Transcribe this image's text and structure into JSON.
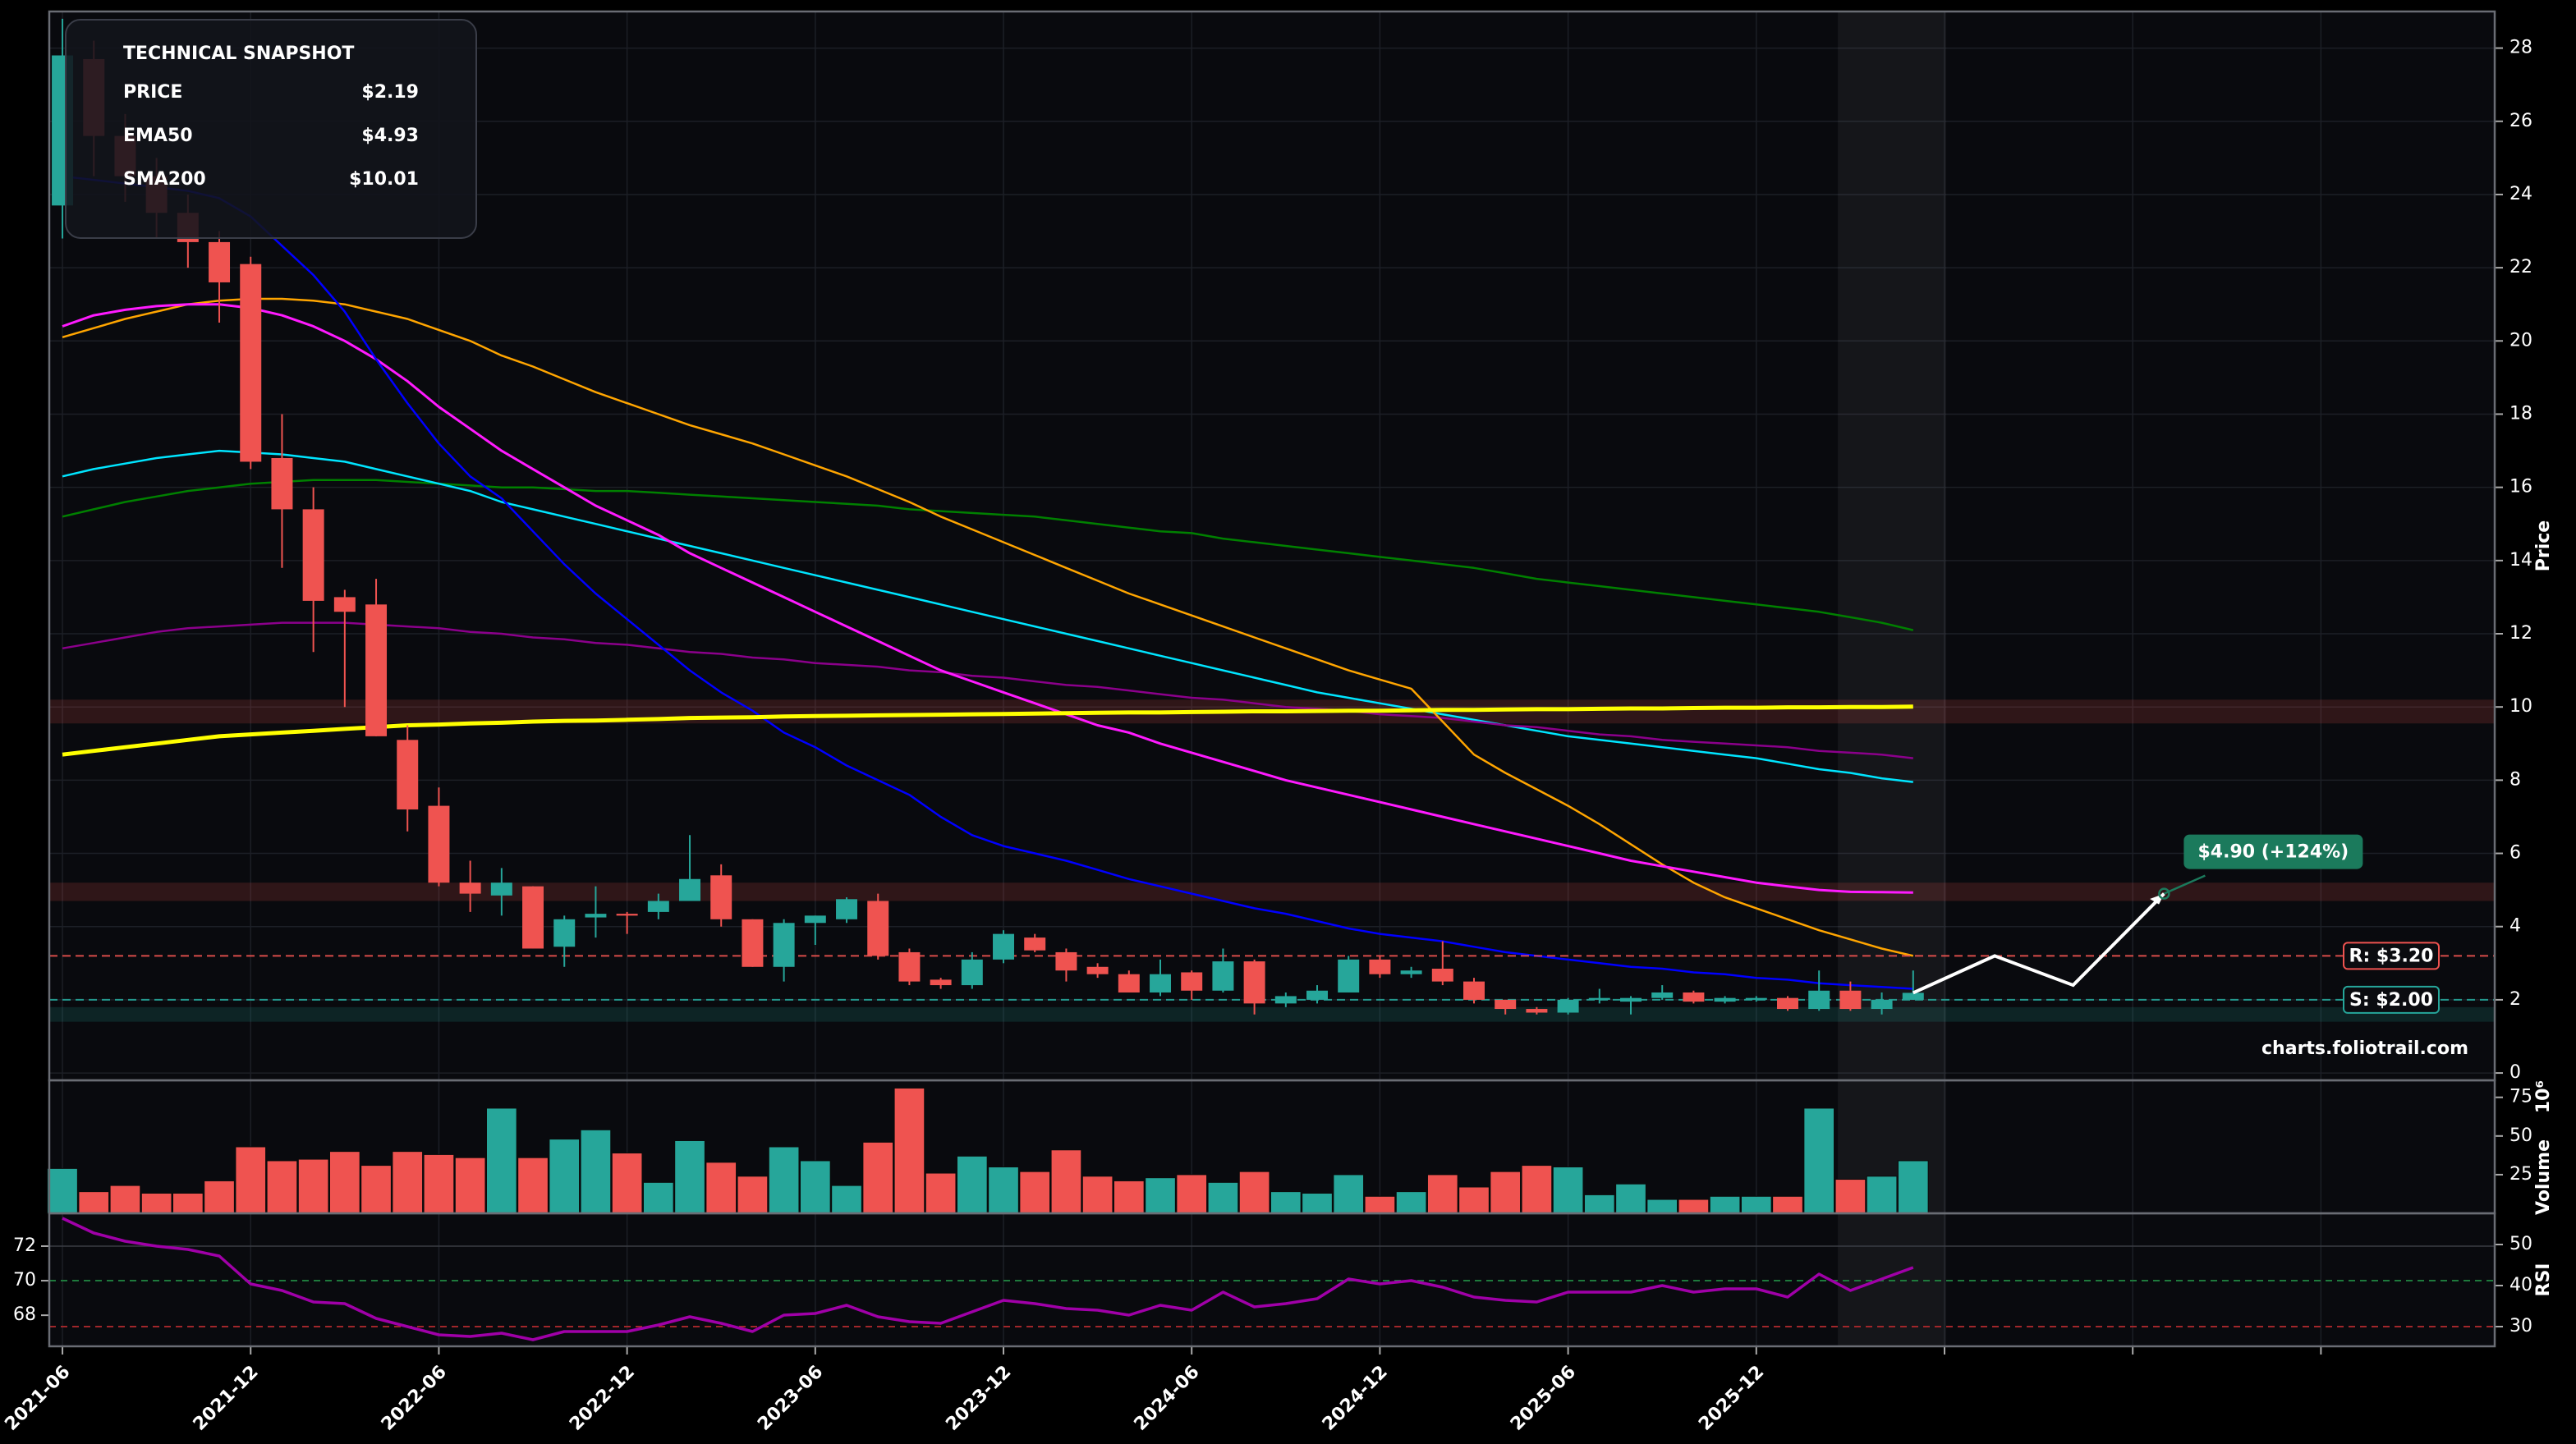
{
  "chart_data": [
    {
      "type": "candlestick",
      "categories": [
        "2021-06",
        "2021-07",
        "2021-08",
        "2021-09",
        "2021-10",
        "2021-11",
        "2021-12",
        "2022-01",
        "2022-02",
        "2022-03",
        "2022-04",
        "2022-05",
        "2022-06",
        "2022-07",
        "2022-08",
        "2022-09",
        "2022-10",
        "2022-11",
        "2022-12",
        "2023-01",
        "2023-02",
        "2023-03",
        "2023-04",
        "2023-05",
        "2023-06",
        "2023-07",
        "2023-08",
        "2023-09",
        "2023-10",
        "2023-11",
        "2023-12",
        "2024-01",
        "2024-02",
        "2024-03",
        "2024-04",
        "2024-05",
        "2024-06",
        "2024-07",
        "2024-08",
        "2024-09",
        "2024-10",
        "2024-11",
        "2024-12",
        "2025-01",
        "2025-02",
        "2025-03",
        "2025-04",
        "2025-05",
        "2025-06",
        "2025-07",
        "2025-08",
        "2025-09",
        "2025-10",
        "2025-11",
        "2025-12",
        "2026-01",
        "2026-02",
        "2026-03",
        "2026-04",
        "2026-05"
      ],
      "open": [
        23.7,
        27.7,
        25.6,
        24.5,
        23.5,
        22.7,
        22.1,
        16.8,
        15.4,
        13.0,
        12.8,
        9.1,
        7.3,
        5.2,
        4.85,
        5.1,
        3.45,
        4.25,
        4.35,
        4.4,
        4.7,
        5.4,
        4.2,
        2.9,
        4.1,
        4.2,
        4.7,
        3.3,
        2.55,
        2.4,
        3.1,
        3.7,
        3.3,
        2.9,
        2.7,
        2.2,
        2.75,
        2.25,
        3.05,
        1.9,
        2.0,
        2.2,
        3.1,
        2.7,
        2.85,
        2.5,
        2.0,
        1.75,
        1.65,
        2.0,
        1.95,
        2.05,
        2.2,
        1.95,
        2.0,
        2.05,
        1.75,
        2.25,
        1.75,
        2.0
      ],
      "high": [
        28.8,
        28.2,
        26.2,
        25.0,
        24.0,
        23.0,
        22.3,
        18.0,
        16.0,
        13.2,
        13.5,
        9.5,
        7.8,
        5.8,
        5.6,
        5.1,
        4.3,
        5.1,
        4.4,
        4.9,
        6.5,
        5.7,
        4.2,
        4.2,
        4.3,
        4.8,
        4.9,
        3.4,
        2.6,
        3.3,
        3.9,
        3.8,
        3.4,
        3.0,
        2.8,
        3.1,
        2.8,
        3.4,
        3.1,
        2.2,
        2.4,
        3.2,
        3.2,
        2.9,
        3.6,
        2.6,
        2.0,
        1.8,
        2.05,
        2.3,
        2.1,
        2.4,
        2.25,
        2.1,
        2.1,
        2.1,
        2.8,
        2.5,
        2.2,
        2.8
      ],
      "low": [
        22.8,
        24.5,
        23.8,
        22.8,
        22.0,
        20.5,
        16.5,
        13.8,
        11.5,
        10.0,
        9.2,
        6.6,
        5.1,
        4.4,
        4.3,
        3.4,
        2.9,
        3.7,
        3.8,
        4.2,
        4.7,
        4.0,
        2.9,
        2.5,
        3.5,
        4.1,
        3.1,
        2.4,
        2.3,
        2.3,
        3.0,
        3.3,
        2.5,
        2.6,
        2.2,
        2.1,
        2.0,
        2.2,
        1.6,
        1.8,
        1.9,
        2.2,
        2.6,
        2.6,
        2.4,
        1.9,
        1.6,
        1.6,
        1.6,
        1.9,
        1.6,
        2.0,
        1.9,
        1.9,
        1.95,
        1.7,
        1.7,
        1.7,
        1.6,
        2.0
      ],
      "close": [
        27.8,
        25.6,
        24.5,
        23.5,
        22.7,
        21.6,
        16.7,
        15.4,
        12.9,
        12.6,
        9.2,
        7.2,
        5.2,
        4.9,
        5.2,
        3.4,
        4.2,
        4.35,
        4.3,
        4.7,
        5.3,
        4.2,
        2.9,
        4.1,
        4.3,
        4.75,
        3.2,
        2.5,
        2.4,
        3.1,
        3.8,
        3.35,
        2.8,
        2.7,
        2.2,
        2.7,
        2.25,
        3.05,
        1.9,
        2.1,
        2.25,
        3.1,
        2.7,
        2.8,
        2.5,
        2.0,
        1.75,
        1.65,
        2.0,
        2.05,
        2.05,
        2.2,
        1.95,
        2.05,
        2.05,
        1.75,
        2.25,
        1.75,
        2.0,
        2.19
      ],
      "up_color": "#26a69a",
      "down_color": "#ef5350",
      "series": [
        {
          "color": "#008000",
          "width": 2.5,
          "values": [
            15.2,
            15.4,
            15.6,
            15.75,
            15.9,
            16.0,
            16.1,
            16.15,
            16.2,
            16.2,
            16.2,
            16.15,
            16.1,
            16.05,
            16.0,
            16.0,
            15.95,
            15.9,
            15.9,
            15.85,
            15.8,
            15.75,
            15.7,
            15.65,
            15.6,
            15.55,
            15.5,
            15.4,
            15.35,
            15.3,
            15.25,
            15.2,
            15.1,
            15.0,
            14.9,
            14.8,
            14.75,
            14.6,
            14.5,
            14.4,
            14.3,
            14.2,
            14.1,
            14.0,
            13.9,
            13.8,
            13.65,
            13.5,
            13.4,
            13.3,
            13.2,
            13.1,
            13.0,
            12.9,
            12.8,
            12.7,
            12.6,
            12.45,
            12.3,
            12.1
          ]
        },
        {
          "color": "#00e5ff",
          "width": 2.5,
          "values": [
            16.3,
            16.5,
            16.65,
            16.8,
            16.9,
            17.0,
            16.95,
            16.9,
            16.8,
            16.7,
            16.5,
            16.3,
            16.1,
            15.9,
            15.6,
            15.4,
            15.2,
            15.0,
            14.8,
            14.6,
            14.4,
            14.2,
            14.0,
            13.8,
            13.6,
            13.4,
            13.2,
            13.0,
            12.8,
            12.6,
            12.4,
            12.2,
            12.0,
            11.8,
            11.6,
            11.4,
            11.2,
            11.0,
            10.8,
            10.6,
            10.4,
            10.25,
            10.1,
            9.95,
            9.8,
            9.65,
            9.5,
            9.35,
            9.2,
            9.1,
            9.0,
            8.9,
            8.8,
            8.7,
            8.6,
            8.45,
            8.3,
            8.2,
            8.05,
            7.95
          ]
        },
        {
          "color": "#8b008b",
          "width": 2.5,
          "values": [
            11.6,
            11.75,
            11.9,
            12.05,
            12.15,
            12.2,
            12.25,
            12.3,
            12.3,
            12.3,
            12.25,
            12.2,
            12.15,
            12.05,
            12.0,
            11.9,
            11.85,
            11.75,
            11.7,
            11.6,
            11.5,
            11.45,
            11.35,
            11.3,
            11.2,
            11.15,
            11.1,
            11.0,
            10.95,
            10.85,
            10.8,
            10.7,
            10.6,
            10.55,
            10.45,
            10.35,
            10.25,
            10.2,
            10.1,
            10.0,
            9.95,
            9.9,
            9.8,
            9.75,
            9.7,
            9.6,
            9.5,
            9.45,
            9.35,
            9.25,
            9.2,
            9.1,
            9.05,
            9.0,
            8.95,
            8.9,
            8.8,
            8.75,
            8.7,
            8.6
          ]
        },
        {
          "color": "#ffa500",
          "width": 2.5,
          "values": [
            20.1,
            20.35,
            20.6,
            20.8,
            21.0,
            21.1,
            21.15,
            21.15,
            21.1,
            21.0,
            20.8,
            20.6,
            20.3,
            20.0,
            19.6,
            19.3,
            18.95,
            18.6,
            18.3,
            18.0,
            17.7,
            17.45,
            17.2,
            16.9,
            16.6,
            16.3,
            15.95,
            15.6,
            15.2,
            14.85,
            14.5,
            14.15,
            13.8,
            13.45,
            13.1,
            12.8,
            12.5,
            12.2,
            11.9,
            11.6,
            11.3,
            11.0,
            10.75,
            10.5,
            9.6,
            8.7,
            8.2,
            7.75,
            7.3,
            6.8,
            6.25,
            5.7,
            5.2,
            4.8,
            4.5,
            4.2,
            3.9,
            3.65,
            3.4,
            3.2
          ]
        },
        {
          "color": "#ff1aff",
          "width": 3,
          "values": [
            20.4,
            20.7,
            20.85,
            20.95,
            21.0,
            21.0,
            20.9,
            20.7,
            20.4,
            20.0,
            19.5,
            18.9,
            18.2,
            17.6,
            17.0,
            16.5,
            16.0,
            15.5,
            15.1,
            14.7,
            14.2,
            13.8,
            13.4,
            13.0,
            12.6,
            12.2,
            11.8,
            11.4,
            11.0,
            10.7,
            10.4,
            10.1,
            9.8,
            9.5,
            9.3,
            9.0,
            8.75,
            8.5,
            8.25,
            8.0,
            7.8,
            7.6,
            7.4,
            7.2,
            7.0,
            6.8,
            6.6,
            6.4,
            6.2,
            6.0,
            5.8,
            5.65,
            5.5,
            5.35,
            5.2,
            5.1,
            5.0,
            4.95,
            4.94,
            4.93
          ]
        },
        {
          "color": "#0000ff",
          "width": 2.5,
          "values": [
            24.5,
            24.4,
            24.3,
            24.2,
            24.1,
            23.9,
            23.4,
            22.6,
            21.8,
            20.8,
            19.5,
            18.3,
            17.2,
            16.3,
            15.7,
            14.8,
            13.9,
            13.1,
            12.4,
            11.7,
            11.0,
            10.4,
            9.9,
            9.3,
            8.9,
            8.4,
            8.0,
            7.6,
            7.0,
            6.5,
            6.2,
            6.0,
            5.8,
            5.55,
            5.3,
            5.1,
            4.9,
            4.7,
            4.5,
            4.35,
            4.15,
            3.95,
            3.8,
            3.7,
            3.6,
            3.45,
            3.3,
            3.2,
            3.1,
            3.0,
            2.9,
            2.85,
            2.75,
            2.7,
            2.6,
            2.55,
            2.45,
            2.4,
            2.35,
            2.3
          ]
        },
        {
          "color": "#ffff00",
          "width": 5,
          "values": [
            8.7,
            8.8,
            8.9,
            9.0,
            9.1,
            9.2,
            9.25,
            9.3,
            9.35,
            9.4,
            9.45,
            9.5,
            9.52,
            9.55,
            9.57,
            9.6,
            9.62,
            9.63,
            9.65,
            9.67,
            9.7,
            9.71,
            9.72,
            9.74,
            9.75,
            9.76,
            9.77,
            9.78,
            9.79,
            9.8,
            9.81,
            9.82,
            9.83,
            9.84,
            9.85,
            9.85,
            9.86,
            9.87,
            9.88,
            9.88,
            9.89,
            9.9,
            9.9,
            9.91,
            9.92,
            9.92,
            9.93,
            9.94,
            9.94,
            9.95,
            9.96,
            9.96,
            9.97,
            9.98,
            9.98,
            9.99,
            9.99,
            10.0,
            10.0,
            10.01
          ]
        }
      ],
      "zones": [
        {
          "range": [
            9.55,
            10.2
          ],
          "color": "#ef5350"
        },
        {
          "range": [
            4.7,
            5.2
          ],
          "color": "#ef5350"
        },
        {
          "range": [
            1.4,
            1.8
          ],
          "color": "#26a69a"
        }
      ],
      "levels": [
        {
          "value": 3.2,
          "label": "R: $3.20",
          "color": "#ef5350"
        },
        {
          "value": 2.0,
          "label": "S: $2.00",
          "color": "#26a69a"
        }
      ],
      "highlight_x": [
        56.6,
        60.05
      ],
      "projection": {
        "x": [
          59,
          61.6,
          64.1,
          67
        ],
        "values": [
          2.19,
          3.2,
          2.4,
          4.9
        ],
        "color": "#ffffff",
        "label": "$4.90 (+124%)",
        "label_color": "#1b7a5c"
      },
      "xlim": [
        -0.42,
        77.54
      ],
      "xticks": [
        {
          "value": 0,
          "label": "2021-06"
        },
        {
          "value": 6,
          "label": "2021-12"
        },
        {
          "value": 12,
          "label": "2022-06"
        },
        {
          "value": 18,
          "label": "2022-12"
        },
        {
          "value": 24,
          "label": "2023-06"
        },
        {
          "value": 30,
          "label": "2023-12"
        },
        {
          "value": 36,
          "label": "2024-06"
        },
        {
          "value": 42,
          "label": "2024-12"
        },
        {
          "value": 48,
          "label": "2025-06"
        },
        {
          "value": 54,
          "label": "2025-12"
        },
        {
          "value": 60,
          "label": null
        },
        {
          "value": 66,
          "label": null
        },
        {
          "value": 72,
          "label": null
        }
      ],
      "ylim": [
        -0.2,
        29
      ],
      "yticks": [
        0,
        2,
        4,
        6,
        8,
        10,
        12,
        14,
        16,
        18,
        20,
        22,
        24,
        26,
        28
      ],
      "ylabel": "Price",
      "grid": true
    },
    {
      "type": "bar",
      "values": [
        29,
        14,
        18,
        13,
        13,
        21,
        43,
        34,
        35,
        40,
        31,
        40,
        38,
        36,
        68,
        36,
        48,
        54,
        39,
        20,
        47,
        33,
        24,
        43,
        34,
        18,
        46,
        81,
        26,
        37,
        30,
        27,
        41,
        24,
        21,
        23,
        25,
        20,
        27,
        14,
        13,
        25,
        11,
        14,
        25,
        17,
        27,
        31,
        30,
        12,
        19,
        9,
        9,
        11,
        11,
        11,
        68,
        22,
        24,
        34
      ],
      "ylim": [
        0,
        86
      ],
      "yticks": [
        25,
        50,
        75
      ],
      "ylabel": "Volume",
      "offset_label": "10⁶"
    },
    {
      "type": "line",
      "series": [
        {
          "color": "#a000a8",
          "axis": "y2",
          "values": [
            56.4,
            52.8,
            50.8,
            49.6,
            48.8,
            47.2,
            40.4,
            38.8,
            36,
            35.6,
            32,
            30,
            28,
            27.6,
            28.4,
            26.8,
            28.8,
            28.8,
            28.8,
            30.4,
            32.4,
            30.8,
            28.8,
            32.8,
            33.2,
            35.2,
            32.4,
            31.2,
            30.8,
            33.6,
            36.4,
            35.6,
            34.4,
            34,
            32.8,
            35.2,
            34,
            38.4,
            34.8,
            35.6,
            36.8,
            41.6,
            40.4,
            41.2,
            39.6,
            37.2,
            36.4,
            36,
            38.4,
            38.4,
            38.4,
            40,
            38.4,
            39.2,
            39.2,
            37.2,
            42.8,
            38.8,
            41.6,
            44.4
          ]
        }
      ],
      "ylim": [
        66.2,
        73.9
      ],
      "yticks": [
        68,
        70,
        72
      ],
      "y2lim": [
        25.2,
        57.6
      ],
      "y2ticks": [
        30,
        40,
        50
      ],
      "ylabel": "RSI",
      "levels": [
        {
          "value": 70,
          "axis": "y",
          "color": "#1e7a3c"
        },
        {
          "value": 30,
          "axis": "y2",
          "color": "#a0262a"
        }
      ]
    }
  ],
  "snapshot": {
    "title": "TECHNICAL SNAPSHOT",
    "rows": [
      {
        "label": "PRICE",
        "value": "$2.19",
        "color": "#ffffff"
      },
      {
        "label": "EMA50",
        "value": "$4.93",
        "color": "#ff44ff"
      },
      {
        "label": "SMA200",
        "value": "$10.01",
        "color": "#ffee00"
      }
    ]
  },
  "watermark": "charts.foliotrail.com"
}
